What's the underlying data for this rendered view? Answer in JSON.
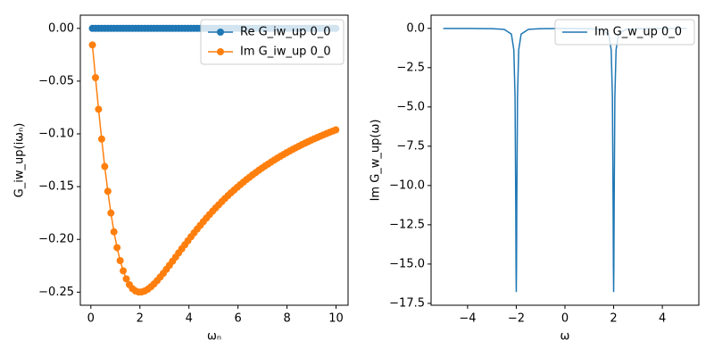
{
  "chart_data": [
    {
      "type": "line",
      "xlabel": "ωₙ",
      "ylabel": "G_iw_up(iωₙ)",
      "legend": "upper right",
      "marker": "o",
      "xlim": [
        -0.43,
        10.49
      ],
      "ylim": [
        -0.2624,
        0.0125
      ],
      "xticks": [
        0,
        2,
        4,
        6,
        8,
        10
      ],
      "yticks": [
        {
          "value": 0,
          "label": "0.00"
        },
        {
          "value": -0.05,
          "label": "−0.05"
        },
        {
          "value": -0.1,
          "label": "−0.10"
        },
        {
          "value": -0.15,
          "label": "−0.15"
        },
        {
          "value": -0.2,
          "label": "−0.20"
        },
        {
          "value": -0.25,
          "label": "−0.25"
        }
      ],
      "x": [
        0.063,
        0.188,
        0.314,
        0.44,
        0.565,
        0.691,
        0.817,
        0.942,
        1.068,
        1.194,
        1.319,
        1.445,
        1.571,
        1.696,
        1.822,
        1.948,
        2.073,
        2.199,
        2.325,
        2.45,
        2.576,
        2.702,
        2.827,
        2.953,
        3.079,
        3.204,
        3.33,
        3.456,
        3.581,
        3.707,
        3.833,
        3.958,
        4.084,
        4.21,
        4.335,
        4.461,
        4.587,
        4.712,
        4.838,
        4.964,
        5.089,
        5.215,
        5.341,
        5.466,
        5.592,
        5.718,
        5.843,
        5.969,
        6.095,
        6.22,
        6.346,
        6.472,
        6.597,
        6.723,
        6.849,
        6.974,
        7.1,
        7.226,
        7.351,
        7.477,
        7.603,
        7.728,
        7.854,
        7.98,
        8.105,
        8.231,
        8.357,
        8.482,
        8.608,
        8.734,
        8.859,
        8.985,
        9.111,
        9.236,
        9.362,
        9.488,
        9.613,
        9.739,
        9.865,
        9.99
      ],
      "series": [
        {
          "name": "Re G_iw_up 0_0",
          "color": "#1f77b4",
          "values": [
            0,
            0,
            0,
            0,
            0,
            0,
            0,
            0,
            0,
            0,
            0,
            0,
            0,
            0,
            0,
            0,
            0,
            0,
            0,
            0,
            0,
            0,
            0,
            0,
            0,
            0,
            0,
            0,
            0,
            0,
            0,
            0,
            0,
            0,
            0,
            0,
            0,
            0,
            0,
            0,
            0,
            0,
            0,
            0,
            0,
            0,
            0,
            0,
            0,
            0,
            0,
            0,
            0,
            0,
            0,
            0,
            0,
            0,
            0,
            0,
            0,
            0,
            0,
            0,
            0,
            0,
            0,
            0,
            0,
            0,
            0,
            0,
            0,
            0,
            0,
            0,
            0,
            0,
            0,
            0
          ]
        },
        {
          "name": "Im G_iw_up 0_0",
          "color": "#ff7f0e",
          "values": [
            -0.0157,
            -0.0467,
            -0.0767,
            -0.1049,
            -0.1309,
            -0.1544,
            -0.175,
            -0.1928,
            -0.2078,
            -0.2201,
            -0.2298,
            -0.2374,
            -0.2429,
            -0.2467,
            -0.2489,
            -0.2499,
            -0.2498,
            -0.2489,
            -0.2472,
            -0.2449,
            -0.2422,
            -0.2391,
            -0.2357,
            -0.2322,
            -0.2284,
            -0.2246,
            -0.2207,
            -0.2168,
            -0.2128,
            -0.2089,
            -0.2051,
            -0.2013,
            -0.1975,
            -0.1938,
            -0.1902,
            -0.1867,
            -0.1832,
            -0.1798,
            -0.1765,
            -0.1733,
            -0.1702,
            -0.1672,
            -0.1642,
            -0.1613,
            -0.1585,
            -0.1558,
            -0.1532,
            -0.1506,
            -0.1481,
            -0.1457,
            -0.1433,
            -0.1411,
            -0.1388,
            -0.1367,
            -0.1345,
            -0.1325,
            -0.1305,
            -0.1286,
            -0.1267,
            -0.1248,
            -0.123,
            -0.1213,
            -0.1196,
            -0.1179,
            -0.1163,
            -0.1147,
            -0.1132,
            -0.1117,
            -0.1102,
            -0.1088,
            -0.1074,
            -0.106,
            -0.1047,
            -0.1034,
            -0.1022,
            -0.1009,
            -0.0997,
            -0.0985,
            -0.0974,
            -0.0962
          ]
        }
      ]
    },
    {
      "type": "line",
      "xlabel": "ω",
      "ylabel": "Im G_w_up(ω)",
      "legend": "upper right",
      "xlim": [
        -5.5,
        5.5
      ],
      "ylim": [
        -17.62,
        0.84
      ],
      "xticks": [
        {
          "value": -4,
          "label": "−4"
        },
        {
          "value": -2,
          "label": "−2"
        },
        0,
        2,
        4
      ],
      "yticks": [
        {
          "value": 0,
          "label": "0.0"
        },
        {
          "value": -2.5,
          "label": "−2.5"
        },
        {
          "value": -5,
          "label": "−5.0"
        },
        {
          "value": -7.5,
          "label": "−7.5"
        },
        {
          "value": -10,
          "label": "−10.0"
        },
        {
          "value": -12.5,
          "label": "−12.5"
        },
        {
          "value": -15,
          "label": "−15.0"
        },
        {
          "value": -17.5,
          "label": "−17.5"
        }
      ],
      "x": [
        -5,
        -4,
        -3,
        -2.5,
        -2.2,
        -2.1,
        -2.05,
        -2.02,
        -2.01,
        -2,
        -1.99,
        -1.98,
        -1.95,
        -1.9,
        -1.8,
        -1.5,
        -1,
        0,
        1,
        1.5,
        1.8,
        1.9,
        1.95,
        1.98,
        1.99,
        2,
        2.01,
        2.02,
        2.05,
        2.1,
        2.2,
        2.5,
        3,
        4,
        5
      ],
      "series": [
        {
          "name": "Im G_w_up 0_0",
          "color": "#1f77b4",
          "values": [
            -0.002,
            -0.004,
            -0.016,
            -0.061,
            -0.365,
            -1.371,
            -4.404,
            -11.574,
            -15.08,
            -16.78,
            -15.08,
            -11.574,
            -4.404,
            -1.371,
            -0.365,
            -0.061,
            -0.017,
            -0.007,
            -0.017,
            -0.061,
            -0.365,
            -1.371,
            -4.404,
            -11.574,
            -15.08,
            -16.78,
            -15.08,
            -11.574,
            -4.404,
            -1.371,
            -0.365,
            -0.061,
            -0.016,
            -0.004,
            -0.002
          ]
        }
      ]
    }
  ]
}
